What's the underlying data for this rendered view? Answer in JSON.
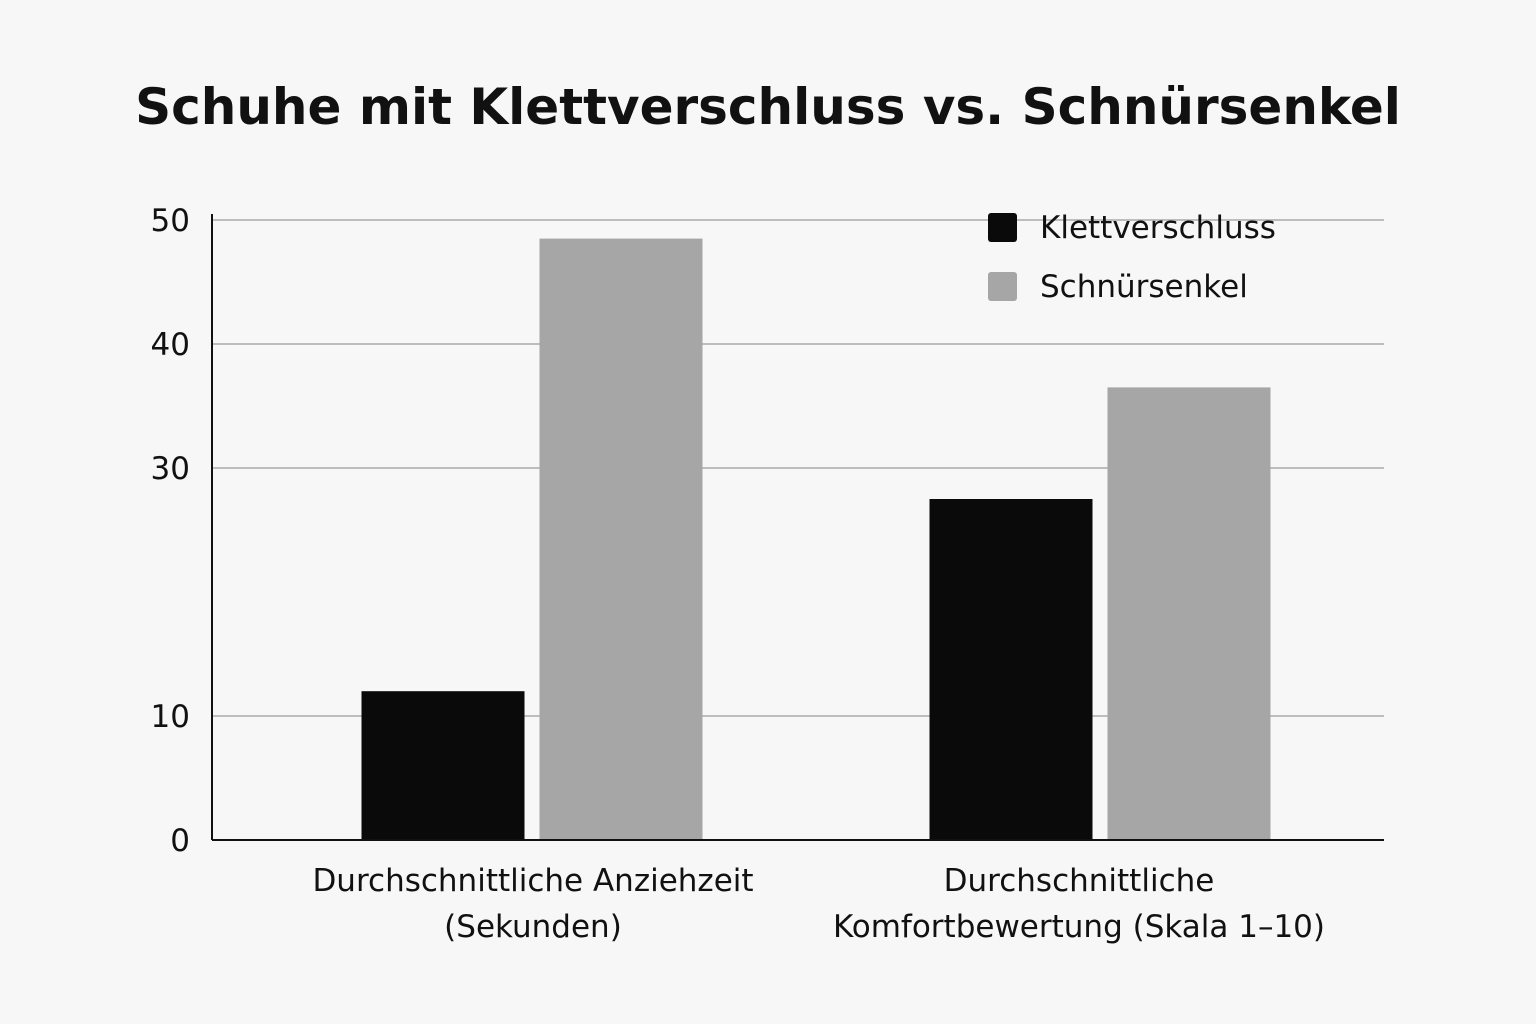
{
  "chart_data": {
    "type": "bar",
    "title": "Schuhe mit Klettverschluss vs. Schnürsenkel",
    "categories": [
      [
        "Durchschnittliche Anziehzeit",
        "(Sekunden)"
      ],
      [
        "Durchschnittliche",
        "Komfortbewertung (Skala 1–10)"
      ]
    ],
    "series": [
      {
        "name": "Klettverschluss",
        "color": "#0a0a0a",
        "values": [
          12,
          27.5
        ]
      },
      {
        "name": "Schnürsenkel",
        "color": "#a6a6a6",
        "values": [
          48.5,
          36.5
        ]
      }
    ],
    "yticks": [
      0,
      10,
      30,
      40,
      50
    ],
    "ylim": [
      0,
      50
    ],
    "xlabel": "",
    "ylabel": "",
    "grid": true,
    "legend_position": "top-right"
  }
}
